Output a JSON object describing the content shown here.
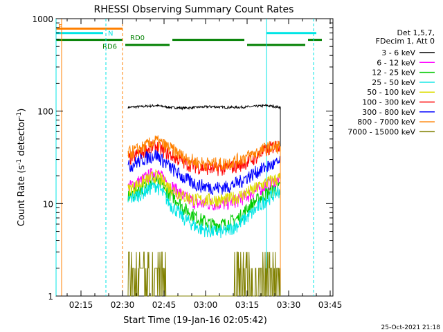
{
  "chart_data": {
    "type": "line",
    "title": "RHESSI Observing Summary Count Rates",
    "xlabel": "Start Time (19-Jan-16 02:05:42)",
    "ylabel_main": "Count Rate (s",
    "ylabel_sup": "-1",
    "ylabel_mid": " detector",
    "ylabel_sup2": "-1",
    "ylabel_end": ")",
    "yscale": "log",
    "ylim": [
      1,
      1000
    ],
    "xlim": [
      "02:06",
      "03:46"
    ],
    "x_ticks": [
      "02:15",
      "02:30",
      "02:45",
      "03:00",
      "03:15",
      "03:30",
      "03:45"
    ],
    "y_ticks": [
      "1",
      "10",
      "100",
      "1000"
    ],
    "legend_header": [
      "Det 1,5,7,",
      "FDecim 1, Att 0"
    ],
    "series": [
      {
        "name": "3 - 6 keV",
        "color": "#000000",
        "start": "02:32",
        "end": "03:27",
        "levels": [
          110,
          112,
          115,
          110,
          108,
          110,
          112,
          110,
          110,
          112,
          115,
          110
        ]
      },
      {
        "name": "6 - 12 keV",
        "color": "#ff00ff",
        "start": "02:32",
        "end": "03:27",
        "levels": [
          15,
          18,
          22,
          16,
          12,
          10,
          10,
          10,
          11,
          13,
          16,
          18
        ]
      },
      {
        "name": "12 - 25 keV",
        "color": "#00cc00",
        "start": "02:32",
        "end": "03:27",
        "levels": [
          12,
          15,
          18,
          13,
          9,
          7,
          6,
          6,
          7,
          10,
          13,
          15
        ]
      },
      {
        "name": "25 - 50 keV",
        "color": "#00e5e5",
        "start": "02:32",
        "end": "03:27",
        "levels": [
          11,
          13,
          16,
          10,
          7,
          5.5,
          5,
          5,
          6,
          8,
          11,
          14
        ]
      },
      {
        "name": "50 - 100 keV",
        "color": "#dddd00",
        "start": "02:32",
        "end": "03:27",
        "levels": [
          14,
          17,
          20,
          15,
          12,
          11,
          11,
          11,
          12,
          14,
          17,
          19
        ]
      },
      {
        "name": "100 - 300 keV",
        "color": "#ff0000",
        "start": "02:32",
        "end": "03:27",
        "levels": [
          30,
          36,
          42,
          34,
          28,
          25,
          24,
          24,
          26,
          30,
          38,
          45
        ]
      },
      {
        "name": "300 - 800 keV",
        "color": "#0000ff",
        "start": "02:32",
        "end": "03:27",
        "levels": [
          25,
          30,
          34,
          25,
          19,
          16,
          15,
          15,
          17,
          21,
          25,
          28
        ]
      },
      {
        "name": "800 - 7000 keV",
        "color": "#ff8000",
        "start": "02:32",
        "end": "03:27",
        "levels": [
          35,
          40,
          48,
          40,
          32,
          28,
          27,
          27,
          30,
          34,
          40,
          42
        ]
      },
      {
        "name": "7000 - 15000 keV",
        "color": "#808000",
        "start": "02:32",
        "end": "03:27",
        "levels": [
          2.5,
          2.5,
          2.2,
          1.8,
          1.2,
          1,
          1,
          1,
          1.4,
          2.2,
          2.6,
          2.5
        ]
      }
    ],
    "markers": [
      {
        "type": "solid_vline",
        "color": "#ff8000",
        "x": "02:08"
      },
      {
        "type": "dashed_vline",
        "color": "#00e5e5",
        "x": "02:24"
      },
      {
        "type": "dashed_vline",
        "color": "#ff8000",
        "x": "02:30"
      },
      {
        "type": "solid_vline",
        "color": "#00e5e5",
        "x": "03:22"
      },
      {
        "type": "dashed_vline",
        "color": "#00e5e5",
        "x": "03:39"
      },
      {
        "type": "solid_vline",
        "color": "#00e5e5",
        "x": "02:06"
      }
    ],
    "flag_bars": [
      {
        "color": "#ff8000",
        "from": "02:06",
        "to": "02:30",
        "level": 780
      },
      {
        "color": "#00e5e5",
        "from": "02:06",
        "to": "02:23",
        "level": 700
      },
      {
        "color": "#00e5e5",
        "from": "03:22",
        "to": "03:40",
        "level": 700
      },
      {
        "color": "#008000",
        "from": "02:06",
        "to": "02:30",
        "level": 590
      },
      {
        "color": "#008000",
        "from": "02:31",
        "to": "02:47",
        "level": 520
      },
      {
        "color": "#008000",
        "from": "02:48",
        "to": "03:14",
        "level": 590
      },
      {
        "color": "#008000",
        "from": "03:15",
        "to": "03:36",
        "level": 520
      },
      {
        "color": "#008000",
        "from": "03:37",
        "to": "03:42",
        "level": 590
      }
    ],
    "flag_labels": [
      {
        "text": "E",
        "color": "#ff8000",
        "x": "02:06",
        "level": 830
      },
      {
        "text": "N",
        "color": "#00e5e5",
        "x": "02:24",
        "level": 700
      },
      {
        "text": "RD0",
        "color": "#008000",
        "x": "02:32",
        "level": 630
      },
      {
        "text": "RD6",
        "color": "#008000",
        "x": "02:22",
        "level": 505
      }
    ],
    "grid": false,
    "legend_placement": "right"
  },
  "footer_timestamp": "25-Oct-2021 21:18"
}
